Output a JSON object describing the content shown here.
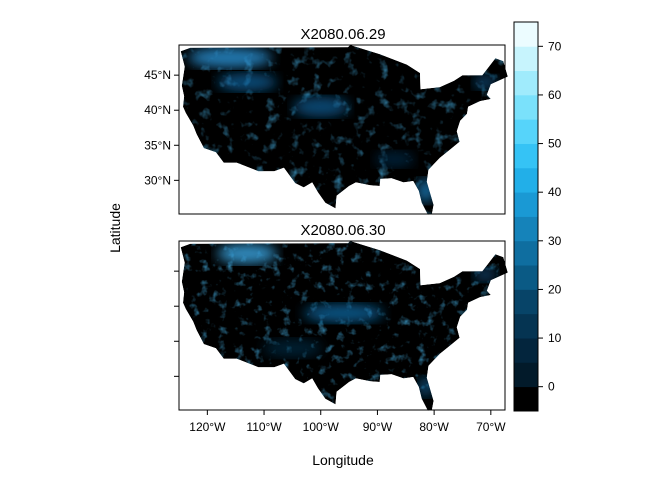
{
  "panels": [
    {
      "title": "X2080.06.29"
    },
    {
      "title": "X2080.06.30"
    }
  ],
  "axes": {
    "xlabel": "Longitude",
    "ylabel": "Latitude",
    "x_ticks": [
      "120°W",
      "110°W",
      "100°W",
      "90°W",
      "80°W",
      "70°W"
    ],
    "y_ticks": [
      "30°N",
      "35°N",
      "40°N",
      "45°N"
    ]
  },
  "colorbar": {
    "labels": [
      "0",
      "10",
      "20",
      "30",
      "40",
      "50",
      "60",
      "70"
    ],
    "min": -5,
    "max": 75,
    "step": 5,
    "colors": [
      "#000000",
      "#021a2a",
      "#03253d",
      "#053452",
      "#074468",
      "#0a5a85",
      "#0f6ea0",
      "#1583ba",
      "#1a99d4",
      "#22afe8",
      "#35c3f5",
      "#56d4fa",
      "#7ae1fb",
      "#a0ebfc",
      "#c7f4fd",
      "#ecfcff"
    ]
  }
}
